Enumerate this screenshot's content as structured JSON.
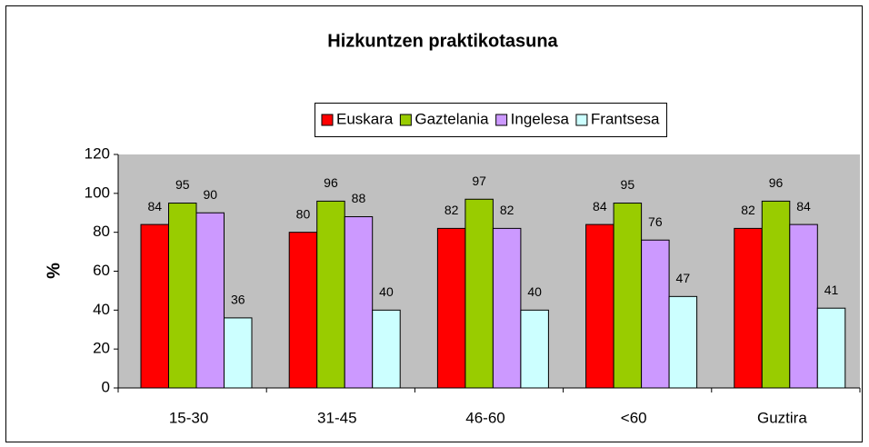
{
  "chart_data": {
    "type": "bar",
    "title": "Hizkuntzen praktikotasuna",
    "ylabel": "%",
    "categories": [
      "15-30",
      "31-45",
      "46-60",
      "<60",
      "Guztira"
    ],
    "series": [
      {
        "name": "Euskara",
        "color": "#ff0000",
        "values": [
          84,
          80,
          82,
          84,
          82
        ]
      },
      {
        "name": "Gaztelania",
        "color": "#99cc00",
        "values": [
          95,
          96,
          97,
          95,
          96
        ]
      },
      {
        "name": "Ingelesa",
        "color": "#cc99ff",
        "values": [
          90,
          88,
          82,
          76,
          84
        ]
      },
      {
        "name": "Frantsesa",
        "color": "#ccffff",
        "values": [
          36,
          40,
          40,
          47,
          41
        ]
      }
    ],
    "ylim": [
      0,
      120
    ],
    "yticks": [
      0,
      20,
      40,
      60,
      80,
      100,
      120
    ],
    "plot_background": "#c0c0c0",
    "legend": "top",
    "data_labels": true
  }
}
